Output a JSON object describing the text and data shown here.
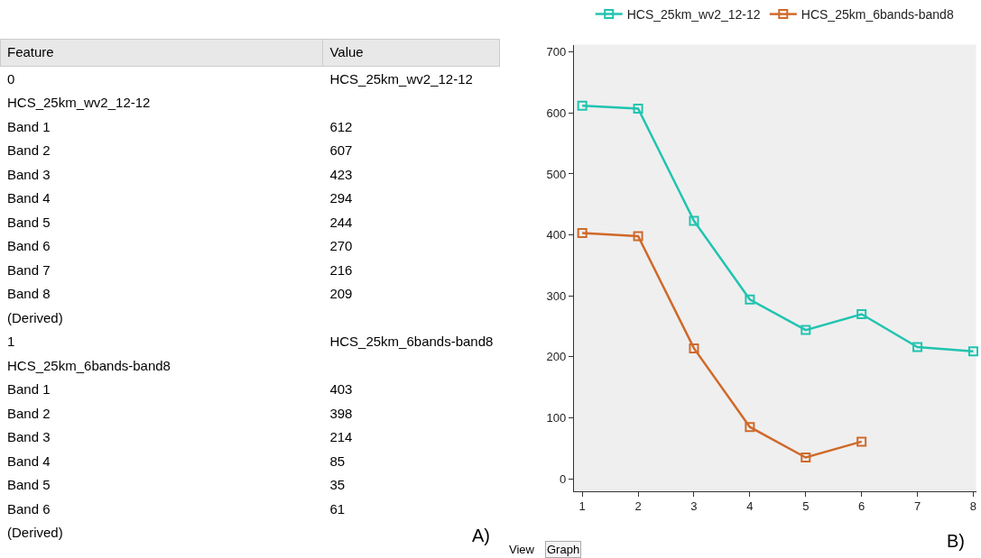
{
  "chart_data": [
    {
      "type": "other",
      "annotations": [
        "Feature",
        "Value",
        "A)"
      ],
      "categories": [
        "0",
        "HCS_25km_wv2_12-12",
        "Band 1",
        "Band 2",
        "Band 3",
        "Band 4",
        "Band 5",
        "Band 6",
        "Band 7",
        "Band 8",
        "(Derived)",
        "1",
        "HCS_25km_6bands-band8",
        "Band 1",
        "Band 2",
        "Band 3",
        "Band 4",
        "Band 5",
        "Band 6",
        "(Derived)"
      ],
      "value_labels": [
        "HCS_25km_wv2_12-12",
        null,
        "612",
        "607",
        "423",
        "294",
        "244",
        "270",
        "216",
        "209",
        null,
        "HCS_25km_6bands-band8",
        null,
        "403",
        "398",
        "214",
        "85",
        "35",
        "61",
        null
      ]
    },
    {
      "type": "line",
      "x": [
        1,
        2,
        3,
        4,
        5,
        6,
        7,
        8
      ],
      "xlim": [
        0.85,
        8.05
      ],
      "xticks": [
        1,
        2,
        3,
        4,
        5,
        6,
        7,
        8
      ],
      "ylim": [
        -20,
        712
      ],
      "yticks": [
        0,
        100,
        200,
        300,
        400,
        500,
        600,
        700
      ],
      "series": [
        {
          "name": "HCS_25km_wv2_12-12",
          "color": "#20c4b0",
          "values": [
            612,
            607,
            423,
            294,
            244,
            270,
            216,
            209
          ]
        },
        {
          "name": "HCS_25km_6bands-band8",
          "color": "#d0692a",
          "values": [
            403,
            398,
            214,
            85,
            35,
            61,
            null,
            null
          ]
        }
      ],
      "marker": "square",
      "line_style": "solid",
      "grid": false,
      "legend": "top",
      "annotations": [
        "B)",
        "View",
        "Graph"
      ]
    }
  ]
}
